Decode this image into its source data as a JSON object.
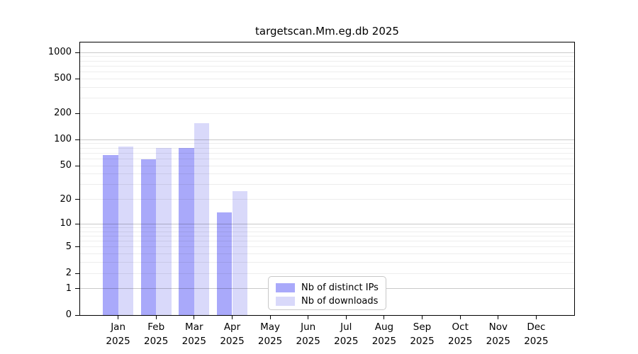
{
  "chart_data": {
    "type": "bar",
    "title": "targetscan.Mm.eg.db 2025",
    "year": "2025",
    "categories": [
      "Jan",
      "Feb",
      "Mar",
      "Apr",
      "May",
      "Jun",
      "Jul",
      "Aug",
      "Sep",
      "Oct",
      "Nov",
      "Dec"
    ],
    "series": [
      {
        "name": "Nb of distinct IPs",
        "color": "#a9a9fa",
        "values": [
          66,
          59,
          81,
          14,
          null,
          null,
          null,
          null,
          null,
          null,
          null,
          null
        ]
      },
      {
        "name": "Nb of downloads",
        "color": "#d9d9fa",
        "values": [
          84,
          81,
          155,
          25,
          null,
          null,
          null,
          null,
          null,
          null,
          null,
          null
        ]
      }
    ],
    "yscale": "log1p",
    "yticks": [
      0,
      1,
      2,
      5,
      10,
      20,
      50,
      100,
      200,
      500,
      1000
    ],
    "ylim": [
      0,
      1305
    ],
    "xlabel": "",
    "ylabel": "",
    "grid": "horizontal, log minor lines, drawn over semi-transparent bars",
    "legend_position": "inside-bottom-center"
  }
}
